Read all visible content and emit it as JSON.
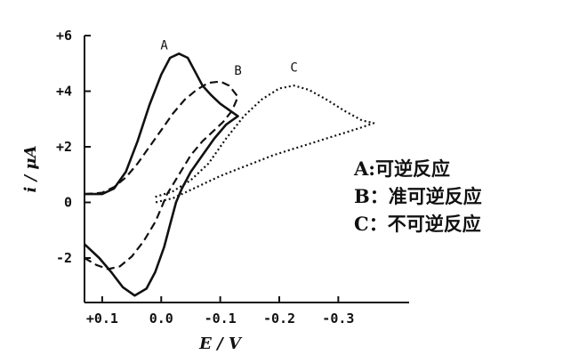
{
  "chart_data": {
    "type": "line",
    "title": "",
    "xlabel": "E / V",
    "ylabel": "i / μA",
    "xlim": [
      0.13,
      -0.42
    ],
    "ylim": [
      -3.6,
      6.0
    ],
    "grid": false,
    "x_ticks": [
      {
        "value": 0.1,
        "label": "+0.1"
      },
      {
        "value": 0.0,
        "label": "0.0"
      },
      {
        "value": -0.1,
        "label": "-0.1"
      },
      {
        "value": -0.2,
        "label": "-0.2"
      },
      {
        "value": -0.3,
        "label": "-0.3"
      }
    ],
    "y_ticks": [
      {
        "value": 6,
        "label": "+6"
      },
      {
        "value": 4,
        "label": "+4"
      },
      {
        "value": 2,
        "label": "+2"
      },
      {
        "value": 0,
        "label": "0"
      },
      {
        "value": -2,
        "label": "-2"
      }
    ],
    "series": [
      {
        "name": "A",
        "style": "solid",
        "points": [
          [
            0.13,
            0.3
          ],
          [
            0.1,
            0.3
          ],
          [
            0.08,
            0.5
          ],
          [
            0.06,
            1.1
          ],
          [
            0.04,
            2.2
          ],
          [
            0.02,
            3.5
          ],
          [
            0.0,
            4.6
          ],
          [
            -0.015,
            5.2
          ],
          [
            -0.03,
            5.35
          ],
          [
            -0.045,
            5.2
          ],
          [
            -0.06,
            4.6
          ],
          [
            -0.07,
            4.2
          ],
          [
            -0.085,
            3.85
          ],
          [
            -0.1,
            3.55
          ],
          [
            -0.13,
            3.1
          ],
          [
            -0.11,
            2.8
          ],
          [
            -0.09,
            2.3
          ],
          [
            -0.07,
            1.7
          ],
          [
            -0.05,
            1.1
          ],
          [
            -0.035,
            0.5
          ],
          [
            -0.025,
            0.0
          ],
          [
            -0.015,
            -0.8
          ],
          [
            -0.005,
            -1.6
          ],
          [
            0.01,
            -2.5
          ],
          [
            0.025,
            -3.1
          ],
          [
            0.045,
            -3.35
          ],
          [
            0.065,
            -3.05
          ],
          [
            0.085,
            -2.5
          ],
          [
            0.105,
            -2.0
          ],
          [
            0.13,
            -1.5
          ]
        ]
      },
      {
        "name": "B",
        "style": "dashed",
        "points": [
          [
            0.13,
            0.3
          ],
          [
            0.1,
            0.35
          ],
          [
            0.08,
            0.55
          ],
          [
            0.06,
            0.9
          ],
          [
            0.04,
            1.4
          ],
          [
            0.02,
            2.0
          ],
          [
            0.0,
            2.6
          ],
          [
            -0.02,
            3.2
          ],
          [
            -0.04,
            3.7
          ],
          [
            -0.06,
            4.05
          ],
          [
            -0.08,
            4.3
          ],
          [
            -0.1,
            4.35
          ],
          [
            -0.115,
            4.2
          ],
          [
            -0.13,
            3.8
          ],
          [
            -0.12,
            3.3
          ],
          [
            -0.105,
            2.9
          ],
          [
            -0.09,
            2.6
          ],
          [
            -0.07,
            2.2
          ],
          [
            -0.05,
            1.7
          ],
          [
            -0.03,
            1.0
          ],
          [
            -0.01,
            0.3
          ],
          [
            0.0,
            -0.2
          ],
          [
            0.01,
            -0.7
          ],
          [
            0.03,
            -1.4
          ],
          [
            0.05,
            -1.95
          ],
          [
            0.07,
            -2.3
          ],
          [
            0.09,
            -2.4
          ],
          [
            0.11,
            -2.25
          ],
          [
            0.13,
            -2.0
          ]
        ]
      },
      {
        "name": "C",
        "style": "dotted",
        "points": [
          [
            0.01,
            0.2
          ],
          [
            -0.02,
            0.4
          ],
          [
            -0.05,
            0.8
          ],
          [
            -0.08,
            1.4
          ],
          [
            -0.11,
            2.3
          ],
          [
            -0.14,
            3.1
          ],
          [
            -0.17,
            3.7
          ],
          [
            -0.2,
            4.1
          ],
          [
            -0.225,
            4.2
          ],
          [
            -0.25,
            4.05
          ],
          [
            -0.28,
            3.7
          ],
          [
            -0.31,
            3.3
          ],
          [
            -0.34,
            2.95
          ],
          [
            -0.36,
            2.85
          ],
          [
            -0.34,
            2.7
          ],
          [
            -0.31,
            2.5
          ],
          [
            -0.28,
            2.3
          ],
          [
            -0.25,
            2.1
          ],
          [
            -0.22,
            1.9
          ],
          [
            -0.19,
            1.7
          ],
          [
            -0.16,
            1.45
          ],
          [
            -0.13,
            1.2
          ],
          [
            -0.1,
            0.95
          ],
          [
            -0.07,
            0.65
          ],
          [
            -0.04,
            0.35
          ],
          [
            -0.02,
            0.15
          ],
          [
            0.0,
            0.05
          ],
          [
            0.01,
            0.0
          ]
        ]
      }
    ],
    "curve_labels": [
      {
        "text": "A",
        "x": -0.005,
        "y": 5.5
      },
      {
        "text": "B",
        "x": -0.13,
        "y": 4.6
      },
      {
        "text": "C",
        "x": -0.225,
        "y": 4.7
      }
    ],
    "legend": {
      "position": "right",
      "entries": [
        "A:可逆反应",
        "B：准可逆反应",
        "C：不可逆反应"
      ]
    }
  }
}
